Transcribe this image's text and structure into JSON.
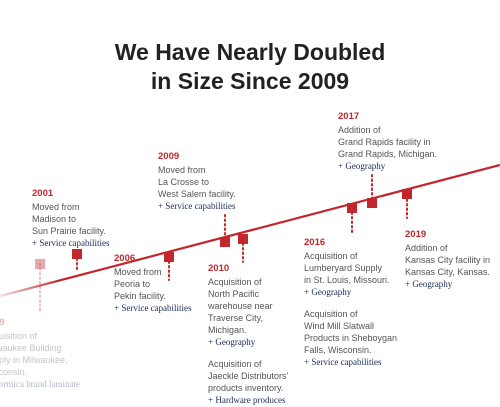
{
  "title": {
    "line1": "We Have Nearly Doubled",
    "line2": "in Size Since 2009"
  },
  "colors": {
    "accent": "#c1272d",
    "tag": "#1b2a5a",
    "text": "#555555",
    "title": "#222222"
  },
  "events": [
    {
      "id": "e1999",
      "year": "99",
      "lines": [
        "quisition of",
        "lwaukee Building",
        "pply in Milwaukee,",
        "sconsin."
      ],
      "tag": "Formica brand laminate",
      "faded": true
    },
    {
      "id": "e2001",
      "year": "2001",
      "lines": [
        "Moved from",
        "Madison to",
        "Sun Prairie facility."
      ],
      "tag": "+ Service capabilities"
    },
    {
      "id": "e2006",
      "year": "2006",
      "lines": [
        "Moved from",
        "Peoria to",
        "Pekin facility."
      ],
      "tag": "+ Service capabilities"
    },
    {
      "id": "e2009",
      "year": "2009",
      "lines": [
        "Moved from",
        "La Crosse to",
        "West Salem facility."
      ],
      "tag": "+ Service capabilities"
    },
    {
      "id": "e2010",
      "year": "2010",
      "paragraphs": [
        {
          "lines": [
            "Acquisition of",
            "North Pacific",
            "warehouse near",
            "Traverse City,",
            "Michigan."
          ],
          "tag": "+ Geography"
        },
        {
          "lines": [
            "Acquisition of",
            "Jaeckle Distributors'",
            "products inventory."
          ],
          "tag": "+ Hardware produces"
        }
      ]
    },
    {
      "id": "e2016",
      "year": "2016",
      "paragraphs": [
        {
          "lines": [
            "Acquisition of",
            "Lumberyard Supply",
            "in St. Louis, Missouri."
          ],
          "tag": "+ Geography"
        },
        {
          "lines": [
            "Acquisition of",
            "Wind Mill Slatwall",
            "Products in Sheboygan",
            "Falls, Wisconsin."
          ],
          "tag": "+ Service capabilities"
        }
      ]
    },
    {
      "id": "e2017",
      "year": "2017",
      "lines": [
        "Addition of",
        "Grand Rapids facility in",
        "Grand Rapids, Michigan."
      ],
      "tag": "+ Geography"
    },
    {
      "id": "e2019",
      "year": "2019",
      "lines": [
        "Addition of",
        "Kansas City facility in",
        "Kansas City, Kansas."
      ],
      "tag": "+ Geography"
    }
  ]
}
